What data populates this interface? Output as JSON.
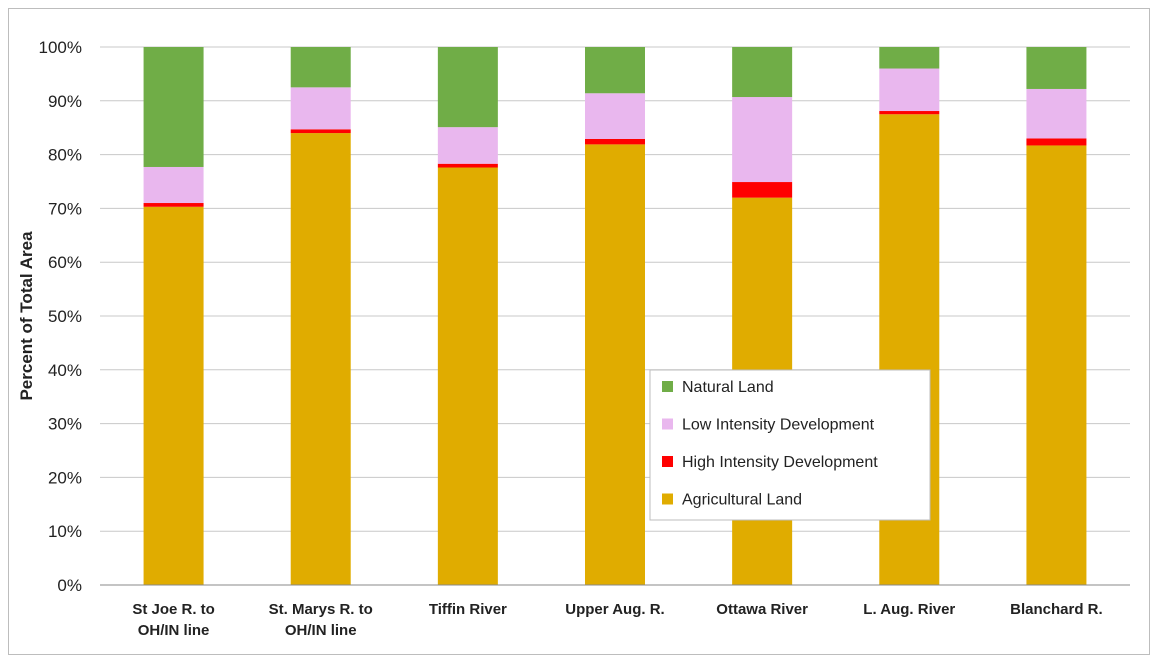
{
  "chart_data": {
    "type": "bar",
    "stacked": true,
    "ylabel": "Percent of Total Area",
    "ylim": [
      0,
      100
    ],
    "yticks": [
      "0%",
      "10%",
      "20%",
      "30%",
      "40%",
      "50%",
      "60%",
      "70%",
      "80%",
      "90%",
      "100%"
    ],
    "grid": true,
    "legend_position": "center-right",
    "categories": [
      [
        "St Joe R. to",
        "OH/IN line"
      ],
      [
        "St. Marys R. to",
        "OH/IN line"
      ],
      [
        "Tiffin River"
      ],
      [
        "Upper Aug. R."
      ],
      [
        "Ottawa River"
      ],
      [
        "L. Aug. River"
      ],
      [
        "Blanchard R."
      ]
    ],
    "series": [
      {
        "name": "Agricultural Land",
        "color": "#e0ac00",
        "values": [
          70.3,
          84.0,
          77.6,
          81.9,
          72.0,
          87.5,
          81.7
        ]
      },
      {
        "name": "High Intensity Development",
        "color": "#ff0000",
        "values": [
          0.7,
          0.7,
          0.7,
          1.0,
          2.9,
          0.6,
          1.3
        ]
      },
      {
        "name": "Low Intensity Development",
        "color": "#e9b7ee",
        "values": [
          6.7,
          7.8,
          6.8,
          8.5,
          15.8,
          7.9,
          9.2
        ]
      },
      {
        "name": "Natural Land",
        "color": "#70ad47",
        "values": [
          22.3,
          7.5,
          14.9,
          8.6,
          9.3,
          4.0,
          7.8
        ]
      }
    ],
    "legend_order": [
      "Natural Land",
      "Low Intensity Development",
      "High Intensity Development",
      "Agricultural Land"
    ]
  }
}
